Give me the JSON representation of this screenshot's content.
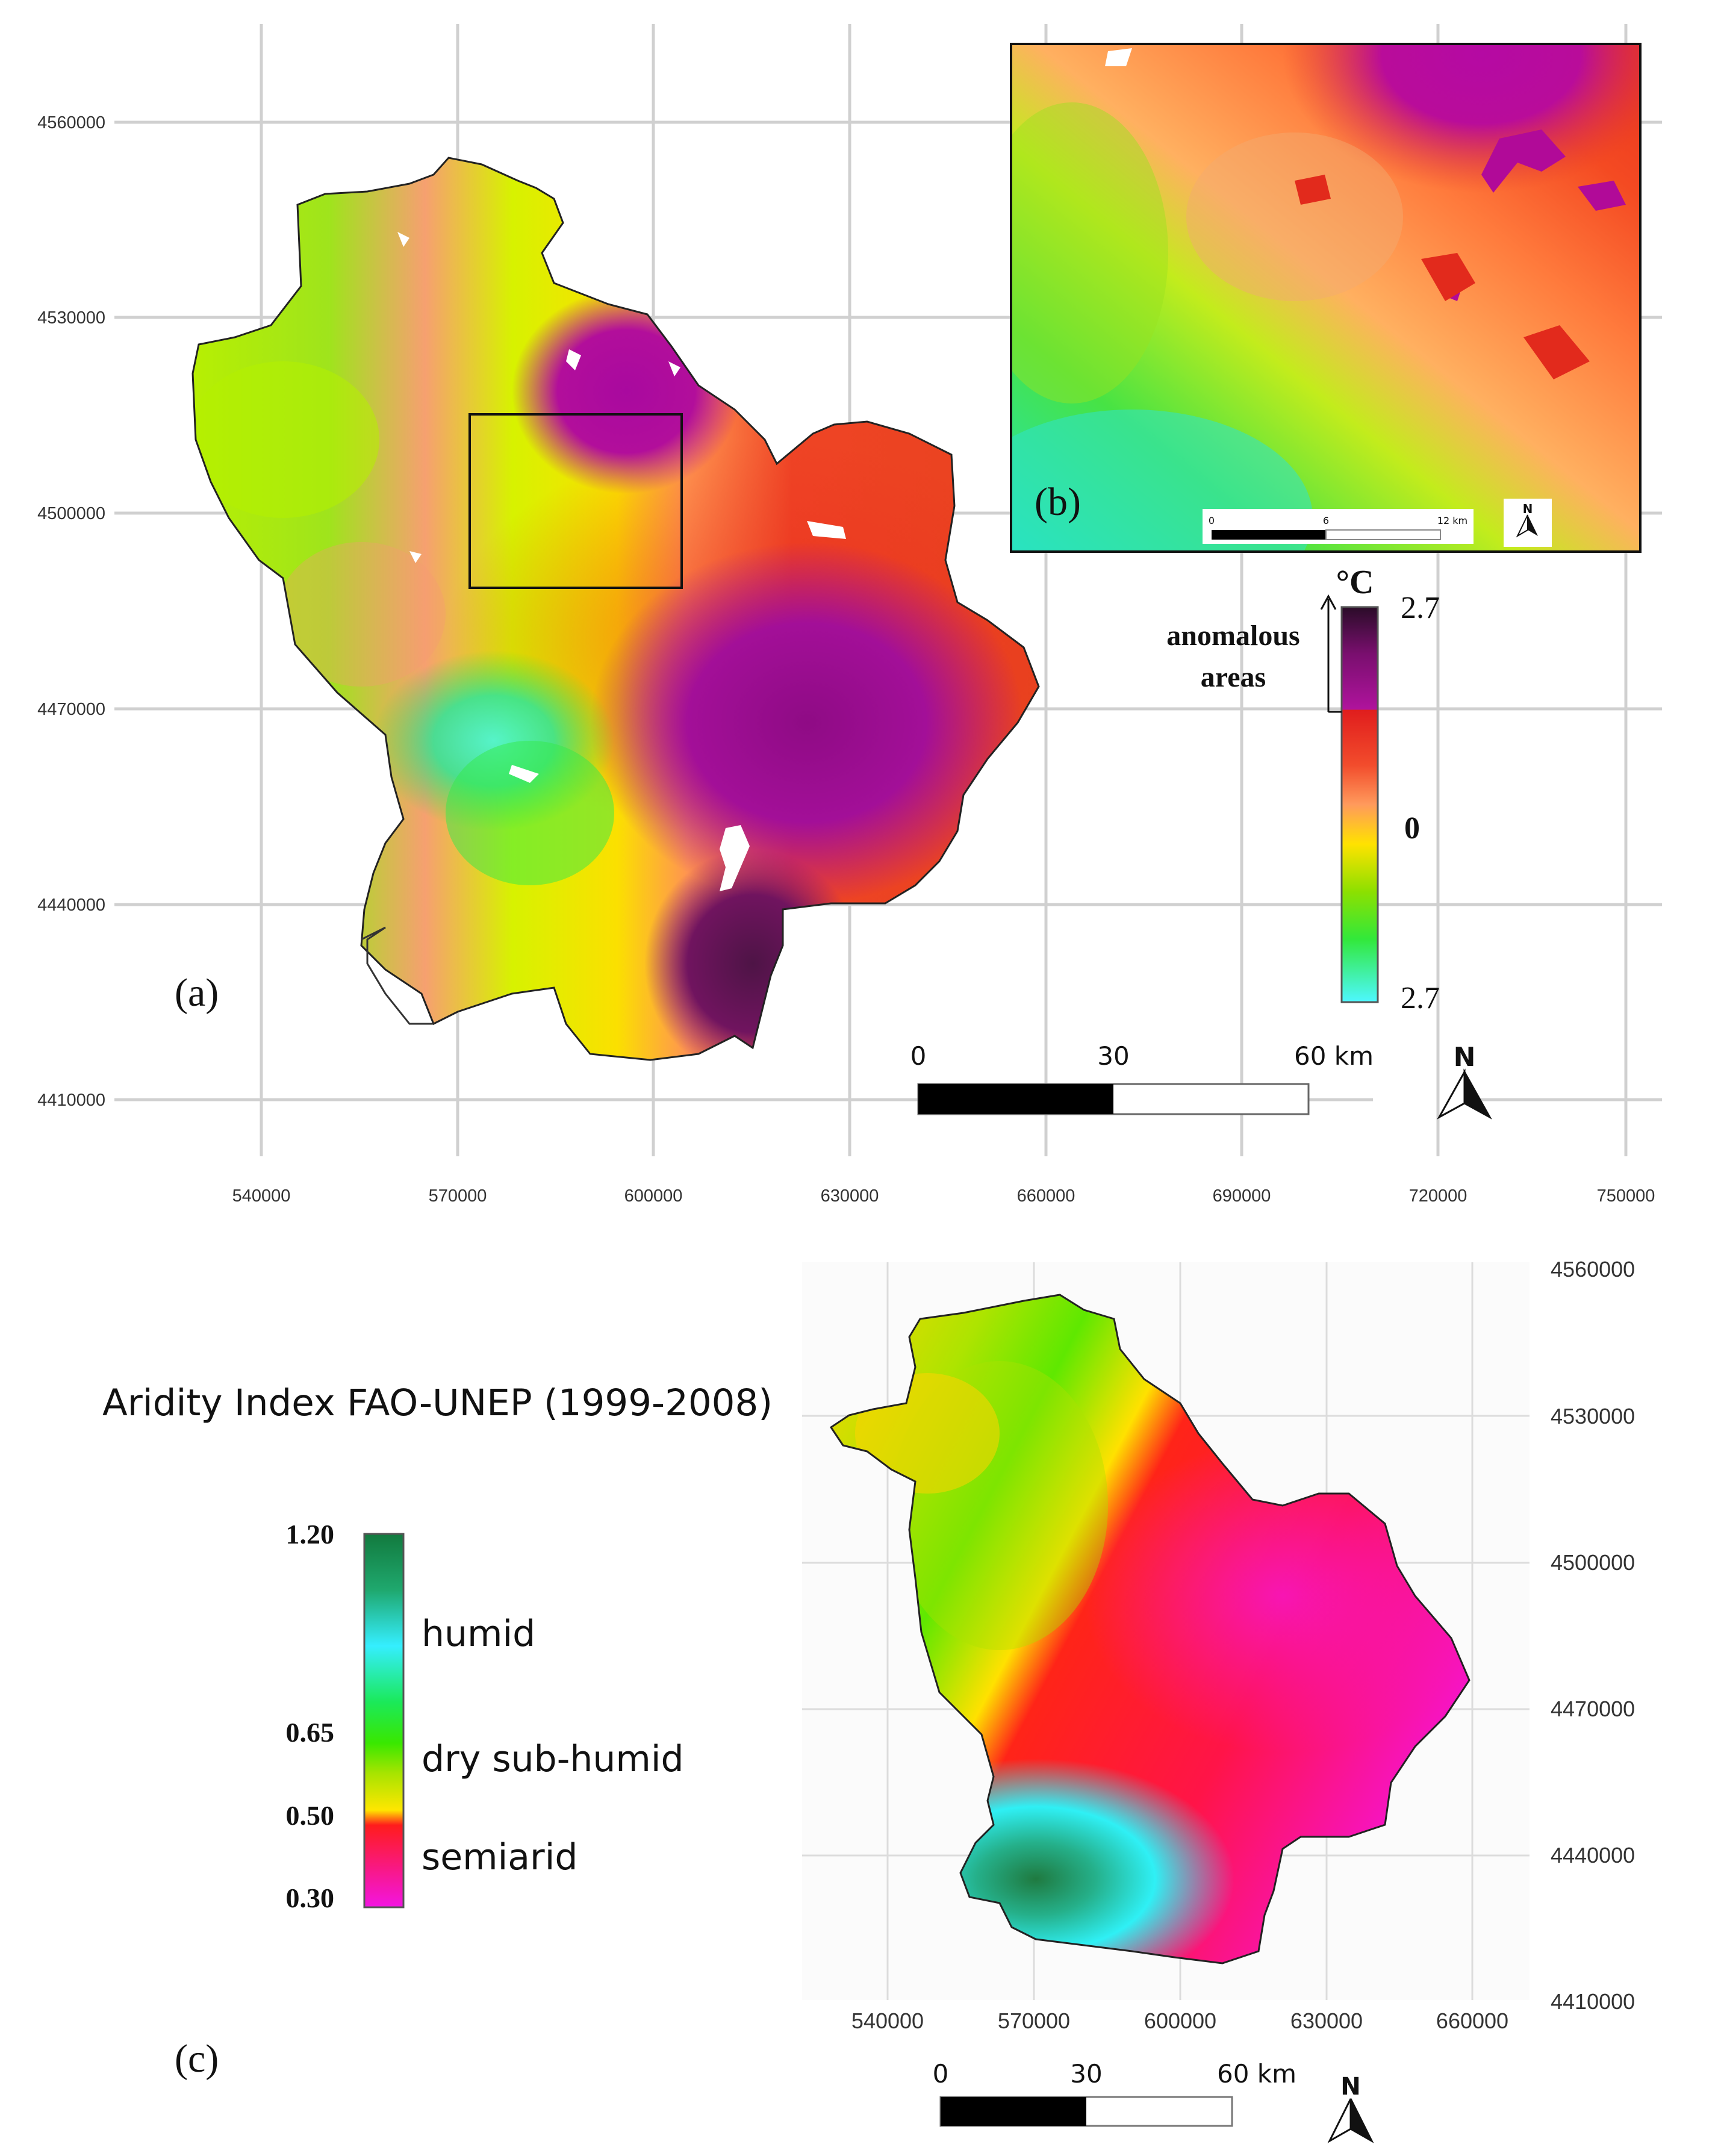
{
  "panel_a": {
    "label": "(a)",
    "x_ticks": [
      "540000",
      "570000",
      "600000",
      "630000",
      "660000",
      "690000",
      "720000",
      "750000"
    ],
    "y_ticks": [
      "4560000",
      "4530000",
      "4500000",
      "4470000",
      "4440000",
      "4410000"
    ],
    "scale": {
      "ticks": [
        "0",
        "30",
        "60 km"
      ]
    },
    "north": "N",
    "legend": {
      "unit": "°C",
      "top_value": "2.7",
      "mid_value": "0",
      "bottom_value": "2.7",
      "annotation": [
        "anomalous",
        "areas"
      ],
      "colors": [
        "#2a0c28",
        "#a0109c",
        "#e01d1d",
        "#ff8a55",
        "#ffe200",
        "#8de000",
        "#32e83a",
        "#4ef7ff"
      ]
    }
  },
  "panel_b": {
    "label": "(b)",
    "scale_ticks": [
      "0",
      "6",
      "12 km"
    ],
    "north": "N"
  },
  "panel_c": {
    "label": "(c)",
    "title": "Aridity Index FAO-UNEP (1999-2008)",
    "legend": {
      "values": [
        "1.20",
        "0.65",
        "0.50",
        "0.30"
      ],
      "classes": [
        "humid",
        "dry sub-humid",
        "semiarid"
      ],
      "colors": [
        "#127a3e",
        "#35eeff",
        "#1be95a",
        "#8ee600",
        "#ffe600",
        "#ff1c1c",
        "#f215e2"
      ]
    },
    "x_ticks": [
      "540000",
      "570000",
      "600000",
      "630000",
      "660000"
    ],
    "y_ticks": [
      "4560000",
      "4530000",
      "4500000",
      "4470000",
      "4440000",
      "4410000"
    ],
    "scale": {
      "ticks": [
        "0",
        "30",
        "60 km"
      ]
    },
    "north": "N"
  }
}
